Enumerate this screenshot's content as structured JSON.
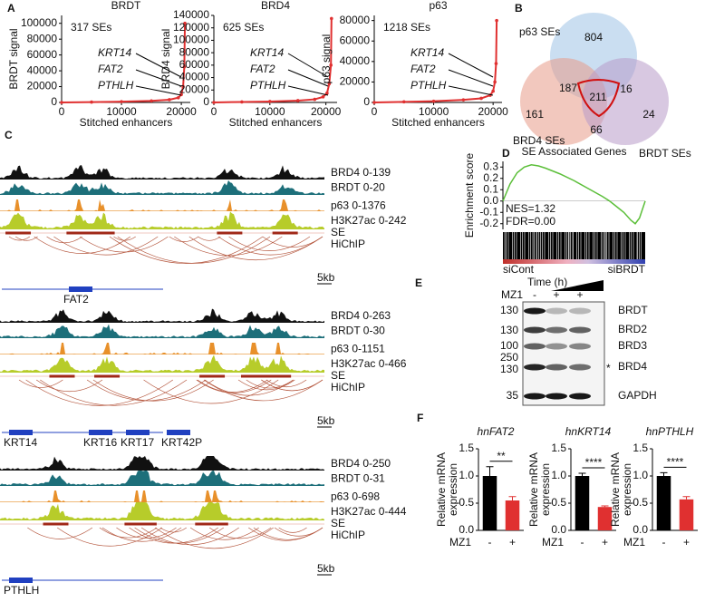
{
  "panel_labels": [
    "A",
    "B",
    "C",
    "D",
    "E",
    "F"
  ],
  "chart_data": [
    {
      "type": "line",
      "title": "BRDT",
      "annotation": "317 SEs",
      "genes": [
        "KRT14",
        "FAT2",
        "PTHLH"
      ],
      "xlabel": "Stitched enhancers",
      "ylabel": "BRDT signal",
      "color": "#e03030",
      "x": [
        0,
        5000,
        10000,
        15000,
        18000,
        19500,
        20000,
        20300,
        20500,
        20600
      ],
      "values": [
        0,
        500,
        1000,
        2000,
        3500,
        6000,
        10000,
        20000,
        45000,
        100000
      ],
      "xlim": [
        0,
        21500
      ],
      "xticks": [
        0,
        10000,
        20000
      ],
      "ylim": [
        0,
        110000
      ],
      "yticks": [
        0,
        20000,
        40000,
        60000,
        80000,
        100000
      ]
    },
    {
      "type": "line",
      "title": "BRD4",
      "annotation": "625 SEs",
      "genes": [
        "KRT14",
        "FAT2",
        "PTHLH"
      ],
      "xlabel": "Stitched enhancers",
      "ylabel": "BRD4 signal",
      "color": "#e03030",
      "x": [
        0,
        5000,
        10000,
        15000,
        18000,
        19500,
        20200,
        20600,
        20900,
        21000
      ],
      "values": [
        0,
        800,
        1500,
        3000,
        5000,
        9000,
        15000,
        30000,
        60000,
        135000
      ],
      "xlim": [
        0,
        22000
      ],
      "xticks": [
        0,
        10000,
        20000
      ],
      "ylim": [
        0,
        140000
      ],
      "yticks": [
        0,
        20000,
        40000,
        60000,
        80000,
        100000,
        120000,
        140000
      ]
    },
    {
      "type": "line",
      "title": "p63",
      "annotation": "1218 SEs",
      "genes": [
        "KRT14",
        "FAT2",
        "PTHLH"
      ],
      "xlabel": "Stitched enhancers",
      "ylabel": "p63 signal",
      "color": "#e03030",
      "x": [
        0,
        5000,
        10000,
        15000,
        18000,
        19500,
        20000,
        20300,
        20500,
        20600
      ],
      "values": [
        0,
        600,
        1200,
        2500,
        4000,
        7000,
        11000,
        20000,
        38000,
        80000
      ],
      "xlim": [
        0,
        21500
      ],
      "xticks": [
        0,
        10000,
        20000
      ],
      "ylim": [
        0,
        85000
      ],
      "yticks": [
        0,
        20000,
        40000,
        60000,
        80000
      ]
    },
    {
      "type": "line",
      "title": "SE Associated Genes",
      "ylabel": "Enrichment score",
      "annotations": [
        "NES=1.32",
        "FDR=0.00"
      ],
      "groups": [
        "siCont",
        "siBRDT"
      ],
      "color": "#5cbf3a",
      "x": [
        0,
        0.05,
        0.1,
        0.15,
        0.2,
        0.25,
        0.3,
        0.4,
        0.5,
        0.6,
        0.7,
        0.75,
        0.8,
        0.85,
        0.9,
        0.93,
        0.96,
        1
      ],
      "values": [
        0,
        0.15,
        0.25,
        0.3,
        0.32,
        0.31,
        0.29,
        0.24,
        0.18,
        0.11,
        0.04,
        0.0,
        -0.05,
        -0.1,
        -0.17,
        -0.2,
        -0.15,
        0
      ],
      "xlim": [
        0,
        1
      ],
      "ylim": [
        -0.25,
        0.35
      ],
      "yticks": [
        0.3,
        0.2,
        0.1,
        {
          "value": 0,
          "label": "0.0"
        },
        -0.1,
        -0.2
      ]
    },
    {
      "type": "bar",
      "title": "hnFAT2",
      "ylabel": [
        "Relative mRNA",
        "expression"
      ],
      "xlabel": "MZ1",
      "categories": [
        "-",
        "+"
      ],
      "values": [
        1.0,
        0.55
      ],
      "errors": [
        0.17,
        0.07
      ],
      "colors": [
        "#000000",
        "#e03030"
      ],
      "significance": "**",
      "ylim": [
        0,
        1.5
      ],
      "yticks": [
        {
          "value": 0,
          "label": "0.0"
        },
        0.5,
        {
          "value": 1,
          "label": "1.0"
        },
        1.5
      ]
    },
    {
      "type": "bar",
      "title": "hnKRT14",
      "ylabel": [
        "Relative mRNA",
        "expression"
      ],
      "xlabel": "MZ1",
      "categories": [
        "-",
        "+"
      ],
      "values": [
        1.0,
        0.43
      ],
      "errors": [
        0.05,
        0.02
      ],
      "colors": [
        "#000000",
        "#e03030"
      ],
      "significance": "****",
      "ylim": [
        0,
        1.5
      ],
      "yticks": [
        {
          "value": 0,
          "label": "0.0"
        },
        0.5,
        {
          "value": 1,
          "label": "1.0"
        },
        1.5
      ]
    },
    {
      "type": "bar",
      "title": "hnPTHLH",
      "ylabel": [
        "Relative mRNA",
        "expression"
      ],
      "xlabel": "MZ1",
      "categories": [
        "-",
        "+"
      ],
      "values": [
        1.0,
        0.57
      ],
      "errors": [
        0.06,
        0.05
      ],
      "colors": [
        "#000000",
        "#e03030"
      ],
      "significance": "****",
      "ylim": [
        0,
        1.5
      ],
      "yticks": [
        {
          "value": 0,
          "label": "0.0"
        },
        0.5,
        {
          "value": 1,
          "label": "1.0"
        },
        1.5
      ]
    }
  ],
  "venn": {
    "sets": [
      "p63 SEs",
      "BRD4 SEs",
      "BRDT SEs"
    ],
    "counts": [
      804,
      187,
      16,
      211,
      161,
      66,
      24
    ]
  },
  "tracks": {
    "groups": [
      {
        "labels": [
          "BRD4 0-139",
          "BRDT 0-20",
          "p63 0-1376",
          "H3K27ac 0-242",
          "SE",
          "HiChIP"
        ],
        "scale": "5kb",
        "genes": [
          "FAT2"
        ]
      },
      {
        "labels": [
          "BRD4 0-263",
          "BRDT 0-30",
          "p63 0-1151",
          "H3K27ac 0-466",
          "SE",
          "HiChIP"
        ],
        "scale": "5kb",
        "genes": [
          "KRT14",
          "KRT16",
          "KRT17",
          "KRT42P"
        ]
      },
      {
        "labels": [
          "BRD4 0-250",
          "BRDT 0-31",
          "p63 0-698",
          "H3K27ac 0-444",
          "SE",
          "HiChIP"
        ],
        "scale": "5kb",
        "genes": [
          "PTHLH"
        ]
      }
    ]
  },
  "blot": {
    "title": "Time (h)",
    "treatment": "MZ1",
    "conditions": [
      "-",
      "+",
      "+"
    ],
    "proteins": [
      "BRDT",
      "BRD2",
      "BRD3",
      "BRD4",
      "GAPDH"
    ],
    "markers": [
      130,
      130,
      100,
      250,
      130,
      35
    ],
    "asterisk": "*"
  }
}
